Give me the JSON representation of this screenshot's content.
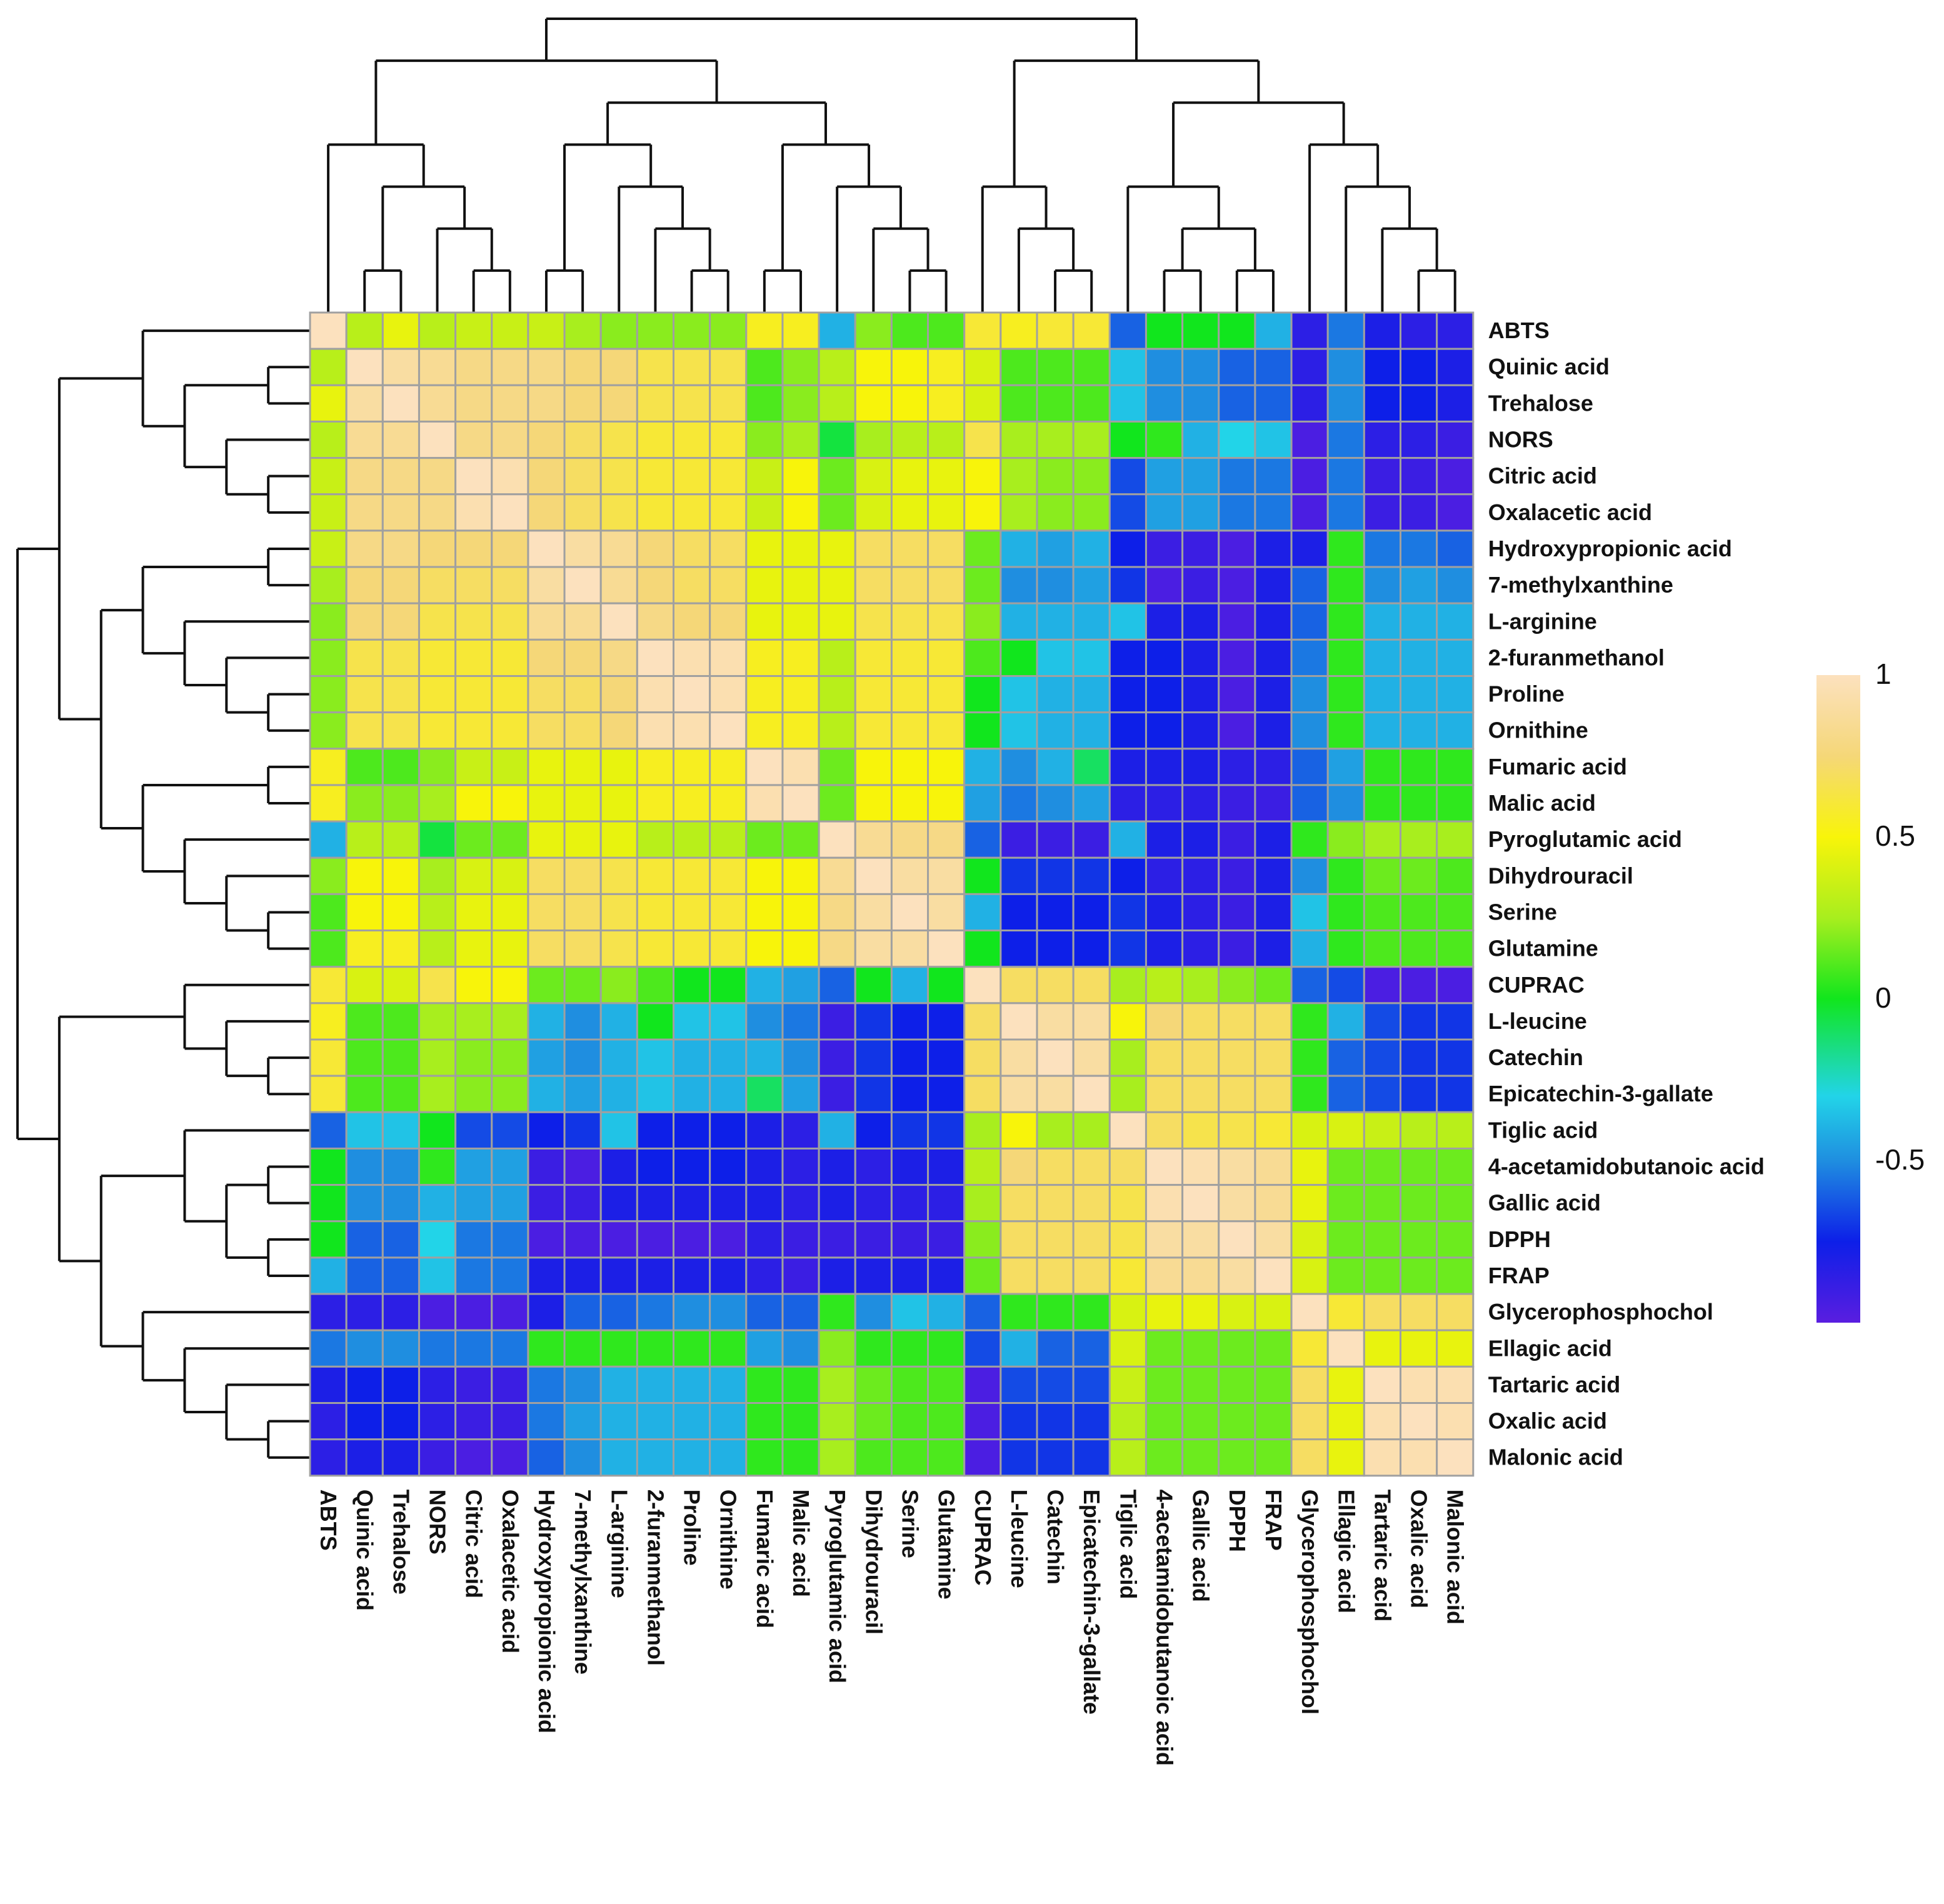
{
  "chart_data": {
    "type": "heatmap",
    "title": "",
    "subtitle": "",
    "xlabel": "",
    "ylabel": "",
    "dendrogram": "hierarchical clustering (rows and columns)",
    "row_labels": [
      "ABTS",
      "Quinic acid",
      "Trehalose",
      "NORS",
      "Citric acid",
      "Oxalacetic acid",
      "Hydroxypropionic acid",
      "7-methylxanthine",
      "L-arginine",
      "2-furanmethanol",
      "Proline",
      "Ornithine",
      "Fumaric acid",
      "Malic acid",
      "Pyroglutamic acid",
      "Dihydrouracil",
      "Serine",
      "Glutamine",
      "CUPRAC",
      "L-leucine",
      "Catechin",
      "Epicatechin-3-gallate",
      "Tiglic acid",
      "4-acetamidobutanoic acid",
      "Gallic acid",
      "DPPH",
      "FRAP",
      "Glycerophosphochol",
      "Ellagic acid",
      "Tartaric acid",
      "Oxalic acid",
      "Malonic acid"
    ],
    "column_labels": [
      "ABTS",
      "Quinic acid",
      "Trehalose",
      "NORS",
      "Citric acid",
      "Oxalacetic acid",
      "Hydroxypropionic acid",
      "7-methylxanthine",
      "L-arginine",
      "2-furanmethanol",
      "Proline",
      "Ornithine",
      "Fumaric acid",
      "Malic acid",
      "Pyroglutamic acid",
      "Dihydrouracil",
      "Serine",
      "Glutamine",
      "CUPRAC",
      "L-leucine",
      "Catechin",
      "Epicatechin-3-gallate",
      "Tiglic acid",
      "4-acetamidobutanoic acid",
      "Gallic acid",
      "DPPH",
      "FRAP",
      "Glycerophosphochol",
      "Ellagic acid",
      "Tartaric acid",
      "Oxalic acid",
      "Malonic acid"
    ],
    "values": [
      [
        1.0,
        0.3,
        0.45,
        0.3,
        0.35,
        0.35,
        0.35,
        0.25,
        0.2,
        0.2,
        0.2,
        0.2,
        0.55,
        0.55,
        -0.4,
        0.2,
        0.1,
        0.1,
        0.6,
        0.55,
        0.6,
        0.6,
        -0.6,
        0.0,
        0.0,
        0.0,
        -0.4,
        -0.85,
        -0.55,
        -0.8,
        -0.85,
        -0.85
      ],
      [
        0.3,
        1.0,
        0.9,
        0.85,
        0.8,
        0.8,
        0.8,
        0.75,
        0.75,
        0.65,
        0.65,
        0.65,
        0.1,
        0.2,
        0.3,
        0.5,
        0.5,
        0.55,
        0.4,
        0.1,
        0.1,
        0.1,
        -0.35,
        -0.5,
        -0.5,
        -0.6,
        -0.6,
        -0.85,
        -0.5,
        -0.75,
        -0.75,
        -0.8
      ],
      [
        0.45,
        0.9,
        1.0,
        0.85,
        0.8,
        0.8,
        0.8,
        0.75,
        0.75,
        0.65,
        0.65,
        0.65,
        0.1,
        0.2,
        0.3,
        0.5,
        0.5,
        0.55,
        0.4,
        0.1,
        0.1,
        0.1,
        -0.35,
        -0.5,
        -0.5,
        -0.6,
        -0.6,
        -0.85,
        -0.5,
        -0.75,
        -0.75,
        -0.8
      ],
      [
        0.3,
        0.85,
        0.85,
        1.0,
        0.8,
        0.8,
        0.75,
        0.7,
        0.65,
        0.6,
        0.6,
        0.6,
        0.2,
        0.25,
        -0.05,
        0.25,
        0.3,
        0.3,
        0.65,
        0.25,
        0.25,
        0.25,
        0.0,
        0.05,
        -0.4,
        -0.3,
        -0.35,
        -0.95,
        -0.55,
        -0.85,
        -0.85,
        -0.9
      ],
      [
        0.35,
        0.8,
        0.8,
        0.8,
        1.0,
        0.95,
        0.75,
        0.7,
        0.65,
        0.6,
        0.6,
        0.6,
        0.35,
        0.5,
        0.15,
        0.4,
        0.45,
        0.45,
        0.5,
        0.25,
        0.2,
        0.2,
        -0.65,
        -0.45,
        -0.45,
        -0.55,
        -0.55,
        -0.95,
        -0.55,
        -0.9,
        -0.9,
        -0.95
      ],
      [
        0.35,
        0.8,
        0.8,
        0.8,
        0.95,
        1.0,
        0.75,
        0.7,
        0.65,
        0.6,
        0.6,
        0.6,
        0.35,
        0.5,
        0.15,
        0.4,
        0.45,
        0.45,
        0.5,
        0.25,
        0.2,
        0.2,
        -0.65,
        -0.45,
        -0.45,
        -0.55,
        -0.55,
        -0.95,
        -0.55,
        -0.9,
        -0.9,
        -0.95
      ],
      [
        0.35,
        0.8,
        0.8,
        0.75,
        0.75,
        0.75,
        1.0,
        0.9,
        0.85,
        0.75,
        0.7,
        0.7,
        0.45,
        0.45,
        0.45,
        0.7,
        0.7,
        0.7,
        0.15,
        -0.4,
        -0.45,
        -0.4,
        -0.75,
        -0.9,
        -0.9,
        -0.95,
        -0.8,
        -0.8,
        0.05,
        -0.55,
        -0.55,
        -0.6
      ],
      [
        0.25,
        0.75,
        0.75,
        0.7,
        0.7,
        0.7,
        0.9,
        1.0,
        0.85,
        0.75,
        0.7,
        0.7,
        0.45,
        0.45,
        0.45,
        0.7,
        0.7,
        0.7,
        0.15,
        -0.5,
        -0.5,
        -0.45,
        -0.7,
        -0.95,
        -0.9,
        -0.95,
        -0.8,
        -0.6,
        0.05,
        -0.5,
        -0.45,
        -0.5
      ],
      [
        0.2,
        0.75,
        0.75,
        0.65,
        0.65,
        0.65,
        0.85,
        0.85,
        1.0,
        0.8,
        0.75,
        0.75,
        0.45,
        0.45,
        0.45,
        0.65,
        0.65,
        0.65,
        0.2,
        -0.4,
        -0.4,
        -0.4,
        -0.35,
        -0.8,
        -0.8,
        -0.95,
        -0.8,
        -0.6,
        0.05,
        -0.4,
        -0.4,
        -0.4
      ],
      [
        0.2,
        0.65,
        0.65,
        0.6,
        0.6,
        0.6,
        0.75,
        0.75,
        0.8,
        1.0,
        0.95,
        0.95,
        0.55,
        0.55,
        0.3,
        0.6,
        0.6,
        0.6,
        0.1,
        0.0,
        -0.35,
        -0.35,
        -0.75,
        -0.75,
        -0.8,
        -0.95,
        -0.8,
        -0.55,
        0.05,
        -0.4,
        -0.4,
        -0.4
      ],
      [
        0.2,
        0.65,
        0.65,
        0.6,
        0.6,
        0.6,
        0.7,
        0.7,
        0.75,
        0.95,
        1.0,
        0.95,
        0.55,
        0.55,
        0.3,
        0.6,
        0.6,
        0.6,
        0.0,
        -0.35,
        -0.4,
        -0.4,
        -0.75,
        -0.75,
        -0.8,
        -0.95,
        -0.8,
        -0.5,
        0.05,
        -0.4,
        -0.4,
        -0.4
      ],
      [
        0.2,
        0.65,
        0.65,
        0.6,
        0.6,
        0.6,
        0.7,
        0.7,
        0.75,
        0.95,
        0.95,
        1.0,
        0.55,
        0.55,
        0.3,
        0.6,
        0.6,
        0.6,
        0.0,
        -0.35,
        -0.4,
        -0.4,
        -0.75,
        -0.75,
        -0.8,
        -0.95,
        -0.8,
        -0.5,
        0.05,
        -0.4,
        -0.4,
        -0.4
      ],
      [
        0.55,
        0.1,
        0.1,
        0.2,
        0.35,
        0.35,
        0.45,
        0.45,
        0.45,
        0.55,
        0.55,
        0.55,
        1.0,
        0.95,
        0.15,
        0.5,
        0.5,
        0.5,
        -0.4,
        -0.5,
        -0.4,
        -0.1,
        -0.8,
        -0.8,
        -0.8,
        -0.85,
        -0.85,
        -0.6,
        -0.45,
        0.05,
        0.05,
        0.05
      ],
      [
        0.55,
        0.2,
        0.2,
        0.25,
        0.5,
        0.5,
        0.45,
        0.45,
        0.45,
        0.55,
        0.55,
        0.55,
        0.95,
        1.0,
        0.15,
        0.5,
        0.5,
        0.5,
        -0.45,
        -0.55,
        -0.5,
        -0.45,
        -0.85,
        -0.85,
        -0.85,
        -0.9,
        -0.9,
        -0.6,
        -0.5,
        0.05,
        0.05,
        0.05
      ],
      [
        -0.4,
        0.3,
        0.3,
        -0.05,
        0.15,
        0.15,
        0.45,
        0.45,
        0.45,
        0.3,
        0.3,
        0.3,
        0.15,
        0.15,
        1.0,
        0.85,
        0.8,
        0.8,
        -0.6,
        -0.9,
        -0.9,
        -0.9,
        -0.4,
        -0.8,
        -0.8,
        -0.9,
        -0.8,
        0.05,
        0.2,
        0.25,
        0.25,
        0.25
      ],
      [
        0.2,
        0.5,
        0.5,
        0.25,
        0.4,
        0.4,
        0.7,
        0.7,
        0.65,
        0.6,
        0.6,
        0.6,
        0.5,
        0.5,
        0.85,
        1.0,
        0.9,
        0.9,
        0.0,
        -0.7,
        -0.7,
        -0.7,
        -0.75,
        -0.85,
        -0.85,
        -0.9,
        -0.8,
        -0.5,
        0.05,
        0.15,
        0.15,
        0.1
      ],
      [
        0.1,
        0.5,
        0.5,
        0.3,
        0.45,
        0.45,
        0.7,
        0.7,
        0.65,
        0.6,
        0.6,
        0.6,
        0.5,
        0.5,
        0.8,
        0.9,
        1.0,
        0.9,
        -0.4,
        -0.75,
        -0.75,
        -0.75,
        -0.7,
        -0.8,
        -0.85,
        -0.9,
        -0.8,
        -0.35,
        0.05,
        0.1,
        0.1,
        0.1
      ],
      [
        0.1,
        0.55,
        0.55,
        0.3,
        0.45,
        0.45,
        0.7,
        0.7,
        0.65,
        0.6,
        0.6,
        0.6,
        0.5,
        0.5,
        0.8,
        0.9,
        0.9,
        1.0,
        0.0,
        -0.75,
        -0.75,
        -0.75,
        -0.7,
        -0.8,
        -0.85,
        -0.9,
        -0.8,
        -0.4,
        0.05,
        0.1,
        0.1,
        0.1
      ],
      [
        0.6,
        0.4,
        0.4,
        0.65,
        0.5,
        0.5,
        0.15,
        0.15,
        0.2,
        0.1,
        0.0,
        0.0,
        -0.4,
        -0.45,
        -0.6,
        0.0,
        -0.4,
        0.0,
        1.0,
        0.7,
        0.7,
        0.7,
        0.25,
        0.3,
        0.25,
        0.2,
        0.15,
        -0.6,
        -0.65,
        -0.95,
        -0.95,
        -0.95
      ],
      [
        0.55,
        0.1,
        0.1,
        0.25,
        0.25,
        0.25,
        -0.4,
        -0.5,
        -0.4,
        0.0,
        -0.35,
        -0.35,
        -0.5,
        -0.55,
        -0.9,
        -0.7,
        -0.75,
        -0.75,
        0.7,
        1.0,
        0.9,
        0.9,
        0.5,
        0.75,
        0.7,
        0.7,
        0.7,
        0.05,
        -0.4,
        -0.65,
        -0.7,
        -0.7
      ],
      [
        0.6,
        0.1,
        0.1,
        0.25,
        0.2,
        0.2,
        -0.45,
        -0.5,
        -0.4,
        -0.35,
        -0.4,
        -0.4,
        -0.4,
        -0.5,
        -0.9,
        -0.7,
        -0.75,
        -0.75,
        0.7,
        0.9,
        1.0,
        0.9,
        0.25,
        0.7,
        0.7,
        0.7,
        0.7,
        0.05,
        -0.6,
        -0.65,
        -0.7,
        -0.7
      ],
      [
        0.6,
        0.1,
        0.1,
        0.25,
        0.2,
        0.2,
        -0.4,
        -0.45,
        -0.4,
        -0.35,
        -0.4,
        -0.4,
        -0.1,
        -0.45,
        -0.9,
        -0.7,
        -0.75,
        -0.75,
        0.7,
        0.9,
        0.9,
        1.0,
        0.25,
        0.7,
        0.7,
        0.7,
        0.7,
        0.05,
        -0.6,
        -0.65,
        -0.7,
        -0.7
      ],
      [
        -0.6,
        -0.35,
        -0.35,
        0.0,
        -0.65,
        -0.65,
        -0.75,
        -0.7,
        -0.35,
        -0.75,
        -0.75,
        -0.75,
        -0.8,
        -0.85,
        -0.4,
        -0.75,
        -0.7,
        -0.7,
        0.25,
        0.5,
        0.25,
        0.25,
        1.0,
        0.7,
        0.65,
        0.65,
        0.6,
        0.4,
        0.4,
        0.35,
        0.3,
        0.3
      ],
      [
        0.0,
        -0.5,
        -0.5,
        0.05,
        -0.45,
        -0.45,
        -0.9,
        -0.95,
        -0.8,
        -0.75,
        -0.75,
        -0.75,
        -0.8,
        -0.85,
        -0.8,
        -0.85,
        -0.8,
        -0.8,
        0.3,
        0.75,
        0.7,
        0.7,
        0.7,
        1.0,
        0.95,
        0.9,
        0.85,
        0.45,
        0.15,
        0.15,
        0.15,
        0.15
      ],
      [
        0.0,
        -0.5,
        -0.5,
        -0.4,
        -0.45,
        -0.45,
        -0.9,
        -0.9,
        -0.8,
        -0.8,
        -0.8,
        -0.8,
        -0.8,
        -0.85,
        -0.8,
        -0.85,
        -0.85,
        -0.85,
        0.25,
        0.7,
        0.7,
        0.7,
        0.65,
        0.95,
        1.0,
        0.9,
        0.85,
        0.45,
        0.15,
        0.15,
        0.15,
        0.15
      ],
      [
        0.0,
        -0.6,
        -0.6,
        -0.3,
        -0.55,
        -0.55,
        -0.95,
        -0.95,
        -0.95,
        -0.95,
        -0.95,
        -0.95,
        -0.85,
        -0.9,
        -0.9,
        -0.9,
        -0.9,
        -0.9,
        0.2,
        0.7,
        0.7,
        0.7,
        0.65,
        0.9,
        0.9,
        1.0,
        0.9,
        0.4,
        0.15,
        0.15,
        0.15,
        0.15
      ],
      [
        -0.4,
        -0.6,
        -0.6,
        -0.35,
        -0.55,
        -0.55,
        -0.8,
        -0.8,
        -0.8,
        -0.8,
        -0.8,
        -0.8,
        -0.85,
        -0.9,
        -0.8,
        -0.8,
        -0.8,
        -0.8,
        0.15,
        0.7,
        0.7,
        0.7,
        0.6,
        0.85,
        0.85,
        0.9,
        1.0,
        0.4,
        0.15,
        0.15,
        0.15,
        0.15
      ],
      [
        -0.85,
        -0.85,
        -0.85,
        -0.95,
        -0.95,
        -0.95,
        -0.8,
        -0.6,
        -0.6,
        -0.55,
        -0.5,
        -0.5,
        -0.6,
        -0.6,
        0.05,
        -0.5,
        -0.35,
        -0.4,
        -0.6,
        0.05,
        0.05,
        0.05,
        0.4,
        0.45,
        0.45,
        0.4,
        0.4,
        1.0,
        0.6,
        0.7,
        0.7,
        0.7
      ],
      [
        -0.55,
        -0.5,
        -0.5,
        -0.55,
        -0.55,
        -0.55,
        0.05,
        0.05,
        0.05,
        0.05,
        0.05,
        0.05,
        -0.45,
        -0.5,
        0.2,
        0.05,
        0.05,
        0.05,
        -0.65,
        -0.4,
        -0.6,
        -0.6,
        0.4,
        0.15,
        0.15,
        0.15,
        0.15,
        0.6,
        1.0,
        0.45,
        0.45,
        0.45
      ],
      [
        -0.8,
        -0.75,
        -0.75,
        -0.85,
        -0.9,
        -0.9,
        -0.55,
        -0.5,
        -0.4,
        -0.4,
        -0.4,
        -0.4,
        0.05,
        0.05,
        0.25,
        0.15,
        0.1,
        0.1,
        -0.95,
        -0.65,
        -0.65,
        -0.65,
        0.35,
        0.15,
        0.15,
        0.15,
        0.15,
        0.7,
        0.45,
        1.0,
        0.95,
        0.95
      ],
      [
        -0.85,
        -0.75,
        -0.75,
        -0.85,
        -0.9,
        -0.9,
        -0.55,
        -0.45,
        -0.4,
        -0.4,
        -0.4,
        -0.4,
        0.05,
        0.05,
        0.25,
        0.15,
        0.1,
        0.1,
        -0.95,
        -0.7,
        -0.7,
        -0.7,
        0.3,
        0.15,
        0.15,
        0.15,
        0.15,
        0.7,
        0.45,
        0.95,
        1.0,
        0.95
      ],
      [
        -0.85,
        -0.8,
        -0.8,
        -0.9,
        -0.95,
        -0.95,
        -0.6,
        -0.5,
        -0.4,
        -0.4,
        -0.4,
        -0.4,
        0.05,
        0.05,
        0.25,
        0.1,
        0.1,
        0.1,
        -0.95,
        -0.7,
        -0.7,
        -0.7,
        0.3,
        0.15,
        0.15,
        0.15,
        0.15,
        0.7,
        0.45,
        0.95,
        0.95,
        1.0
      ]
    ],
    "color_scale": {
      "min": -1,
      "max": 1,
      "stops": [
        {
          "value": -1.0,
          "color": "#5a1ee0"
        },
        {
          "value": -0.75,
          "color": "#0d1fe8"
        },
        {
          "value": -0.5,
          "color": "#1f8ee0"
        },
        {
          "value": -0.3,
          "color": "#22d4e8"
        },
        {
          "value": 0.0,
          "color": "#11e61d"
        },
        {
          "value": 0.25,
          "color": "#a8ee1e"
        },
        {
          "value": 0.5,
          "color": "#f8f40a"
        },
        {
          "value": 0.75,
          "color": "#f5d778"
        },
        {
          "value": 1.0,
          "color": "#fce1be"
        }
      ]
    },
    "legend": {
      "position": "right",
      "ticks": [
        {
          "value": 1,
          "label": "1"
        },
        {
          "value": 0.5,
          "label": "0.5"
        },
        {
          "value": 0,
          "label": "0"
        },
        {
          "value": -0.5,
          "label": "-0.5"
        }
      ]
    },
    "grid_color": "#a0a0a0"
  }
}
